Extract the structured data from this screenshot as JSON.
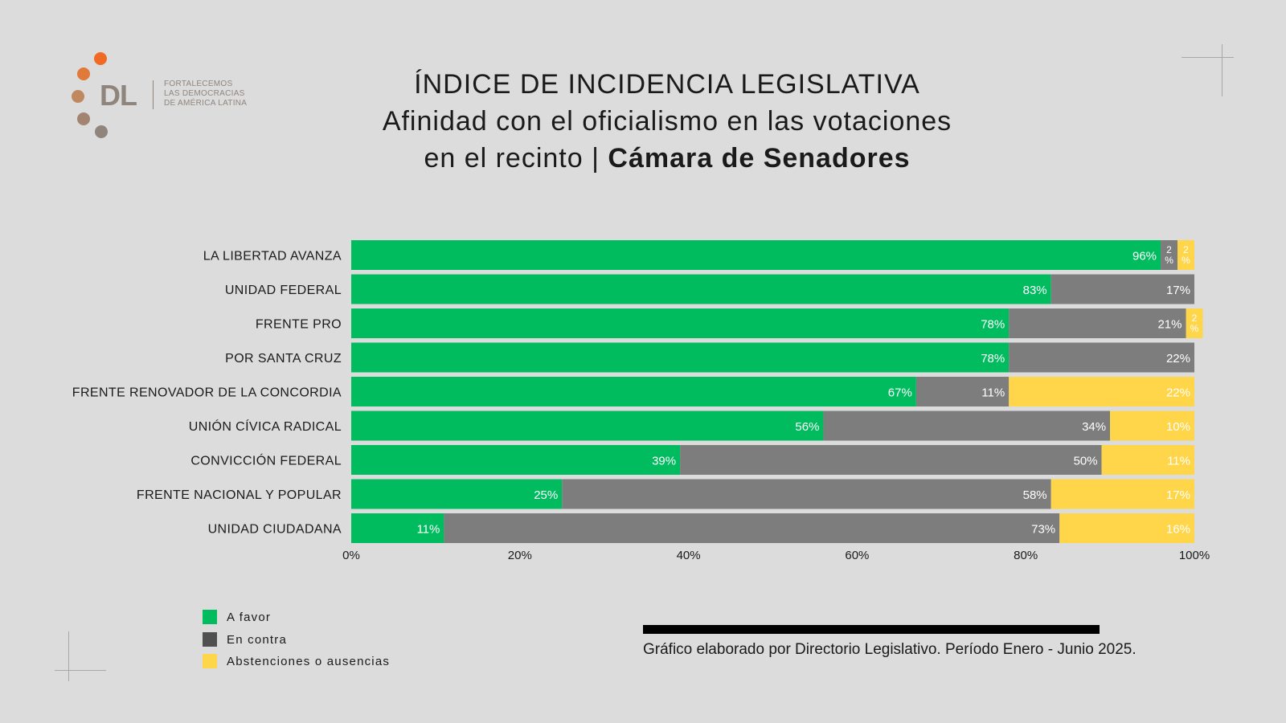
{
  "logo": {
    "initials": "DL",
    "tagline": [
      "FORTALECEMOS",
      "LAS DEMOCRACIAS",
      "DE AMÉRICA LATINA"
    ]
  },
  "title": {
    "line1": "ÍNDICE DE INCIDENCIA LEGISLATIVA",
    "line2": "Afinidad con el oficialismo en las votaciones",
    "line3_prefix": "en el recinto | ",
    "line3_bold": "Cámara de Senadores"
  },
  "colors": {
    "background": "#dcdcdc",
    "a_favor": "#00bc5f",
    "en_contra": "#7d7d7d",
    "abstenciones": "#ffd54a",
    "logo_orange": "#f06a24",
    "logo_brown": "#8f857d"
  },
  "chart_data": {
    "type": "bar",
    "orientation": "horizontal",
    "stacked": true,
    "categories": [
      "LA LIBERTAD AVANZA",
      "UNIDAD FEDERAL",
      "FRENTE PRO",
      "POR SANTA CRUZ",
      "FRENTE RENOVADOR DE LA CONCORDIA",
      "UNIÓN CÍVICA RADICAL",
      "CONVICCIÓN FEDERAL",
      "FRENTE NACIONAL Y POPULAR",
      "UNIDAD CIUDADANA"
    ],
    "series": [
      {
        "name": "A favor",
        "color": "#00bc5f",
        "values": [
          96,
          83,
          78,
          78,
          67,
          56,
          39,
          25,
          11
        ]
      },
      {
        "name": "En contra",
        "color": "#7d7d7d",
        "values": [
          2,
          17,
          21,
          22,
          11,
          34,
          50,
          58,
          73
        ]
      },
      {
        "name": "Abstenciones o ausencias",
        "color": "#ffd54a",
        "values": [
          2,
          0,
          2,
          0,
          22,
          10,
          11,
          17,
          16
        ]
      }
    ],
    "xlim": [
      0,
      100
    ],
    "xticks": [
      "0%",
      "20%",
      "40%",
      "60%",
      "80%",
      "100%"
    ],
    "value_suffix": "%",
    "legend_position": "bottom-left",
    "grid": false
  },
  "legend": {
    "items": [
      {
        "label": "A favor",
        "color": "#00bc5f"
      },
      {
        "label": "En contra",
        "color": "#7d7d7d"
      },
      {
        "label": "Abstenciones o ausencias",
        "color": "#ffd54a"
      }
    ]
  },
  "source": {
    "text": "Gráfico elaborado por Directorio Legislativo. Período Enero - Junio 2025."
  }
}
